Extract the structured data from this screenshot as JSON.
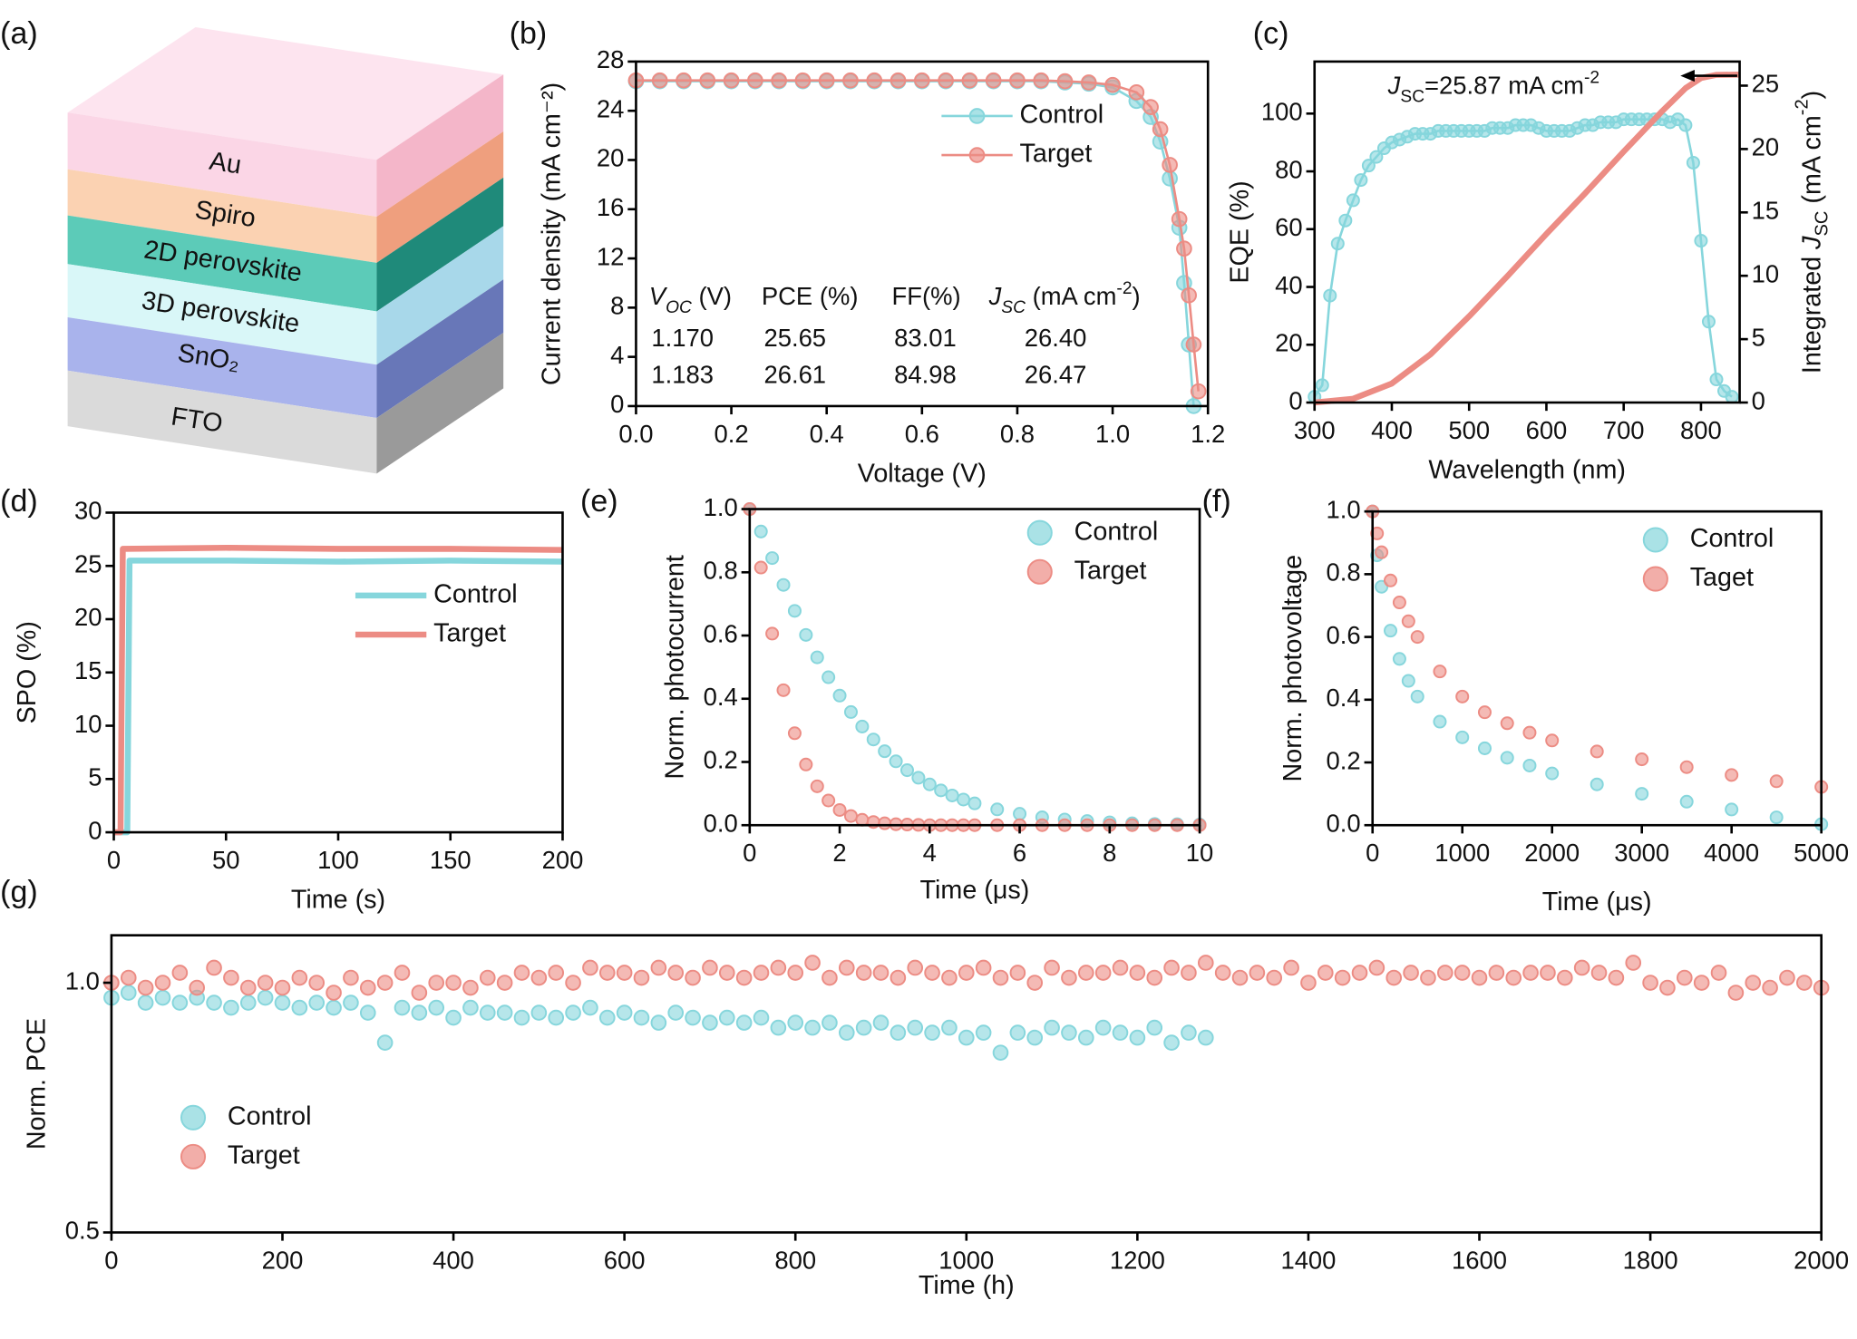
{
  "diagram": {
    "label": "(a)",
    "layers": [
      "Au",
      "Spiro",
      "2D perovskite",
      "3D perovskite",
      "SnO₂",
      "FTO"
    ]
  },
  "chart_data": [
    {
      "type": "line",
      "label": "(b)",
      "xlabel": "Voltage (V)",
      "ylabel": "Current density (mA cm⁻²)",
      "xlim": [
        0,
        1.2
      ],
      "xticks": [
        {
          "value": 0,
          "label": "0.0"
        },
        0.2,
        0.4,
        0.6,
        0.8,
        {
          "value": 1,
          "label": "1.0"
        },
        1.2
      ],
      "ylim": [
        0,
        28
      ],
      "yticks": [
        0,
        4,
        8,
        12,
        16,
        20,
        24,
        28
      ],
      "legend": "upper right",
      "x": [
        0,
        0.05,
        0.1,
        0.15,
        0.2,
        0.25,
        0.3,
        0.35,
        0.4,
        0.45,
        0.5,
        0.55,
        0.6,
        0.65,
        0.7,
        0.75,
        0.8,
        0.85,
        0.9,
        0.95,
        1.0,
        1.05,
        1.08,
        1.1,
        1.12,
        1.14,
        1.15,
        1.16,
        1.17,
        1.18
      ],
      "series": [
        {
          "name": "Control",
          "color": "#86d6dc",
          "style": "line-marker",
          "values": [
            26.4,
            26.4,
            26.4,
            26.4,
            26.4,
            26.4,
            26.4,
            26.4,
            26.4,
            26.4,
            26.4,
            26.4,
            26.4,
            26.4,
            26.4,
            26.4,
            26.4,
            26.4,
            26.3,
            26.2,
            25.9,
            24.8,
            23.5,
            21.5,
            18.5,
            14.5,
            10,
            5,
            0,
            null
          ]
        },
        {
          "name": "Target",
          "color": "#ec8c84",
          "style": "line-marker",
          "values": [
            26.47,
            26.47,
            26.47,
            26.47,
            26.47,
            26.47,
            26.47,
            26.47,
            26.47,
            26.47,
            26.47,
            26.47,
            26.47,
            26.47,
            26.47,
            26.47,
            26.47,
            26.47,
            26.4,
            26.3,
            26.1,
            25.5,
            24.3,
            22.5,
            19.6,
            15.2,
            12.8,
            9,
            5,
            1.2
          ]
        }
      ],
      "table": {
        "headers": [
          [
            {
              "text": "V",
              "style": "italic"
            },
            {
              "text": "OC",
              "style": "italic-sub"
            },
            {
              "text": " (V)"
            }
          ],
          [
            {
              "text": "PCE (%)"
            }
          ],
          [
            {
              "text": "FF(%)"
            }
          ],
          [
            {
              "text": "J",
              "style": "italic"
            },
            {
              "text": "SC",
              "style": "italic-sub"
            },
            {
              "text": " (mA cm"
            },
            {
              "text": "-2",
              "style": "sup"
            },
            {
              "text": ")"
            }
          ]
        ],
        "rows": [
          [
            "1.170",
            "25.65",
            "83.01",
            "26.40"
          ],
          [
            "1.183",
            "26.61",
            "84.98",
            "26.47"
          ]
        ]
      }
    },
    {
      "type": "line",
      "label": "(c)",
      "xlabel": "Wavelength (nm)",
      "ylabel": "EQE (%)",
      "y2label": [
        {
          "text": "Integrated "
        },
        {
          "text": "J",
          "style": "italic"
        },
        {
          "text": "SC",
          "style": "sub"
        },
        {
          "text": " (mA cm"
        },
        {
          "text": "-2",
          "style": "sup"
        },
        {
          "text": ")"
        }
      ],
      "xlim": [
        300,
        850
      ],
      "xticks": [
        300,
        400,
        500,
        600,
        700,
        800
      ],
      "ylim": [
        0,
        118
      ],
      "yticks": [
        0,
        20,
        40,
        60,
        80,
        100
      ],
      "ycolor": "#86d6dc",
      "y2lim": [
        0,
        26.9
      ],
      "y2ticks": [
        0,
        5,
        10,
        15,
        20,
        25
      ],
      "y2color": "#ec8c84",
      "annotation": [
        {
          "text": "J",
          "style": "italic"
        },
        {
          "text": "SC",
          "style": "sub"
        },
        {
          "text": "=25.87 mA cm"
        },
        {
          "text": "-2",
          "style": "sup"
        }
      ],
      "series": [
        {
          "color": "#86d6dc",
          "style": "line-marker",
          "x": [
            300,
            310,
            320,
            330,
            340,
            350,
            360,
            370,
            380,
            390,
            400,
            410,
            420,
            430,
            440,
            450,
            460,
            470,
            480,
            490,
            500,
            510,
            520,
            530,
            540,
            550,
            560,
            570,
            580,
            590,
            600,
            610,
            620,
            630,
            640,
            650,
            660,
            670,
            680,
            690,
            700,
            710,
            720,
            730,
            740,
            750,
            760,
            770,
            780,
            790,
            800,
            810,
            820,
            830,
            840
          ],
          "values": [
            2,
            6,
            37,
            55,
            63,
            70,
            77,
            82,
            85,
            88,
            90,
            91,
            92,
            93,
            93,
            93,
            94,
            94,
            94,
            94,
            94,
            94,
            94,
            95,
            95,
            95,
            96,
            96,
            96,
            95,
            94,
            94,
            94,
            94,
            95,
            96,
            96,
            97,
            97,
            97,
            98,
            98,
            98,
            98,
            98,
            98,
            97,
            98,
            96,
            83,
            56,
            28,
            8,
            4,
            2
          ]
        },
        {
          "color": "#ec8c84",
          "style": "line",
          "axis": "y2",
          "x": [
            300,
            350,
            400,
            450,
            500,
            550,
            600,
            650,
            700,
            750,
            780,
            800,
            820,
            850
          ],
          "values": [
            0,
            0.3,
            1.5,
            3.8,
            6.8,
            10,
            13.3,
            16.5,
            19.8,
            23,
            24.8,
            25.6,
            25.85,
            25.87
          ]
        }
      ]
    },
    {
      "type": "line",
      "label": "(d)",
      "xlabel": "Time (s)",
      "ylabel": "SPO (%)",
      "xlim": [
        0,
        200
      ],
      "xticks": [
        0,
        50,
        100,
        150,
        200
      ],
      "ylim": [
        0,
        30
      ],
      "yticks": [
        0,
        5,
        10,
        15,
        20,
        25,
        30
      ],
      "legend": "center right",
      "series": [
        {
          "name": "Control",
          "color": "#86d6dc",
          "style": "line",
          "x": [
            0,
            6,
            7,
            50,
            100,
            150,
            200
          ],
          "values": [
            0,
            0,
            25.5,
            25.5,
            25.4,
            25.5,
            25.4
          ]
        },
        {
          "name": "Target",
          "color": "#ec8c84",
          "style": "line",
          "x": [
            0,
            3,
            4,
            50,
            100,
            150,
            200
          ],
          "values": [
            0,
            0,
            26.6,
            26.7,
            26.6,
            26.6,
            26.5
          ]
        }
      ]
    },
    {
      "type": "scatter",
      "label": "(e)",
      "xlabel": "Time (μs)",
      "ylabel": "Norm. photocurrent",
      "xlim": [
        0,
        10
      ],
      "xticks": [
        0,
        2,
        4,
        6,
        8,
        10
      ],
      "ylim": [
        0,
        1
      ],
      "yticks": [
        {
          "value": 0,
          "label": "0.0"
        },
        0.2,
        0.4,
        0.6,
        0.8,
        {
          "value": 1,
          "label": "1.0"
        }
      ],
      "legend": "upper right",
      "x": [
        0,
        0.25,
        0.5,
        0.75,
        1,
        1.25,
        1.5,
        1.75,
        2,
        2.25,
        2.5,
        2.75,
        3,
        3.25,
        3.5,
        3.75,
        4,
        4.25,
        4.5,
        4.75,
        5,
        5.5,
        6,
        6.5,
        7,
        7.5,
        8,
        8.5,
        9,
        9.5,
        10
      ],
      "series": [
        {
          "name": "Control",
          "color": "#86d6dc",
          "style": "marker",
          "values": [
            1,
            0.929,
            0.845,
            0.76,
            0.678,
            0.602,
            0.531,
            0.468,
            0.41,
            0.358,
            0.312,
            0.271,
            0.234,
            0.202,
            0.174,
            0.15,
            0.129,
            0.11,
            0.094,
            0.081,
            0.069,
            0.05,
            0.036,
            0.025,
            0.018,
            0.013,
            0.009,
            0.006,
            0.004,
            0.003,
            0.002
          ]
        },
        {
          "name": "Target",
          "color": "#ec8c84",
          "style": "marker",
          "values": [
            1,
            0.815,
            0.606,
            0.427,
            0.291,
            0.192,
            0.123,
            0.078,
            0.048,
            0.029,
            0.017,
            0.01,
            0.006,
            0.003,
            0.002,
            0.001,
            0,
            0,
            0,
            0,
            0,
            0,
            0,
            0,
            0,
            0,
            0,
            0,
            0,
            0,
            0
          ]
        }
      ]
    },
    {
      "type": "scatter",
      "label": "(f)",
      "xlabel": "Time (μs)",
      "ylabel": "Norm. photovoltage",
      "xlim": [
        0,
        5000
      ],
      "xticks": [
        0,
        1000,
        2000,
        3000,
        4000,
        5000
      ],
      "ylim": [
        0,
        1
      ],
      "yticks": [
        {
          "value": 0,
          "label": "0.0"
        },
        0.2,
        0.4,
        0.6,
        0.8,
        {
          "value": 1,
          "label": "1.0"
        }
      ],
      "legend": "upper right",
      "x": [
        0,
        50,
        100,
        200,
        300,
        400,
        500,
        750,
        1000,
        1250,
        1500,
        1750,
        2000,
        2500,
        3000,
        3500,
        4000,
        4500,
        5000
      ],
      "series": [
        {
          "name": "Control",
          "color": "#86d6dc",
          "style": "marker",
          "values": [
            1,
            0.86,
            0.76,
            0.62,
            0.53,
            0.46,
            0.41,
            0.33,
            0.28,
            0.245,
            0.215,
            0.19,
            0.165,
            0.13,
            0.1,
            0.075,
            0.05,
            0.025,
            0.003
          ]
        },
        {
          "name": "Taget",
          "color": "#ec8c84",
          "style": "marker",
          "values": [
            1,
            0.93,
            0.87,
            0.78,
            0.71,
            0.65,
            0.6,
            0.49,
            0.41,
            0.36,
            0.325,
            0.295,
            0.27,
            0.235,
            0.21,
            0.185,
            0.16,
            0.14,
            0.122
          ]
        }
      ]
    },
    {
      "type": "scatter",
      "label": "(g)",
      "xlabel": "Time (h)",
      "ylabel": "Norm. PCE",
      "xlim": [
        0,
        2000
      ],
      "xticks": [
        0,
        200,
        400,
        600,
        800,
        1000,
        1200,
        1400,
        1600,
        1800,
        2000
      ],
      "ylim": [
        0.5,
        1.095
      ],
      "yticks": [
        0.5,
        {
          "value": 1,
          "label": "1.0"
        }
      ],
      "legend": "center left",
      "series": [
        {
          "name": "Control",
          "color": "#86d6dc",
          "style": "marker",
          "x": [
            0,
            20,
            40,
            60,
            80,
            100,
            120,
            140,
            160,
            180,
            200,
            220,
            240,
            260,
            280,
            300,
            320,
            340,
            360,
            380,
            400,
            420,
            440,
            460,
            480,
            500,
            520,
            540,
            560,
            580,
            600,
            620,
            640,
            660,
            680,
            700,
            720,
            740,
            760,
            780,
            800,
            820,
            840,
            860,
            880,
            900,
            920,
            940,
            960,
            980,
            1000,
            1020,
            1040,
            1060,
            1080,
            1100,
            1120,
            1140,
            1160,
            1180,
            1200,
            1220,
            1240,
            1260,
            1280
          ],
          "values": [
            0.97,
            0.98,
            0.96,
            0.97,
            0.96,
            0.97,
            0.96,
            0.95,
            0.96,
            0.97,
            0.96,
            0.95,
            0.96,
            0.95,
            0.96,
            0.94,
            0.88,
            0.95,
            0.94,
            0.95,
            0.93,
            0.95,
            0.94,
            0.94,
            0.93,
            0.94,
            0.93,
            0.94,
            0.95,
            0.93,
            0.94,
            0.93,
            0.92,
            0.94,
            0.93,
            0.92,
            0.93,
            0.92,
            0.93,
            0.91,
            0.92,
            0.91,
            0.92,
            0.9,
            0.91,
            0.92,
            0.9,
            0.91,
            0.9,
            0.91,
            0.89,
            0.9,
            0.86,
            0.9,
            0.89,
            0.91,
            0.9,
            0.89,
            0.91,
            0.9,
            0.89,
            0.91,
            0.88,
            0.9,
            0.89
          ]
        },
        {
          "name": "Target",
          "color": "#ec8c84",
          "style": "marker",
          "x": [
            0,
            20,
            40,
            60,
            80,
            100,
            120,
            140,
            160,
            180,
            200,
            220,
            240,
            260,
            280,
            300,
            320,
            340,
            360,
            380,
            400,
            420,
            440,
            460,
            480,
            500,
            520,
            540,
            560,
            580,
            600,
            620,
            640,
            660,
            680,
            700,
            720,
            740,
            760,
            780,
            800,
            820,
            840,
            860,
            880,
            900,
            920,
            940,
            960,
            980,
            1000,
            1020,
            1040,
            1060,
            1080,
            1100,
            1120,
            1140,
            1160,
            1180,
            1200,
            1220,
            1240,
            1260,
            1280,
            1300,
            1320,
            1340,
            1360,
            1380,
            1400,
            1420,
            1440,
            1460,
            1480,
            1500,
            1520,
            1540,
            1560,
            1580,
            1600,
            1620,
            1640,
            1660,
            1680,
            1700,
            1720,
            1740,
            1760,
            1780,
            1800,
            1820,
            1840,
            1860,
            1880,
            1900,
            1920,
            1940,
            1960,
            1980,
            2000
          ],
          "values": [
            1.0,
            1.01,
            0.99,
            1.0,
            1.02,
            0.99,
            1.03,
            1.01,
            0.99,
            1.0,
            0.99,
            1.01,
            1.0,
            0.98,
            1.01,
            0.99,
            1.0,
            1.02,
            0.98,
            1.0,
            1.0,
            0.99,
            1.01,
            1.0,
            1.02,
            1.01,
            1.02,
            1.0,
            1.03,
            1.02,
            1.02,
            1.01,
            1.03,
            1.02,
            1.01,
            1.03,
            1.02,
            1.01,
            1.02,
            1.03,
            1.02,
            1.04,
            1.01,
            1.03,
            1.02,
            1.02,
            1.01,
            1.03,
            1.02,
            1.01,
            1.02,
            1.03,
            1.01,
            1.02,
            1.0,
            1.03,
            1.01,
            1.02,
            1.02,
            1.03,
            1.02,
            1.01,
            1.03,
            1.02,
            1.04,
            1.02,
            1.01,
            1.02,
            1.01,
            1.03,
            1.0,
            1.02,
            1.01,
            1.02,
            1.03,
            1.01,
            1.02,
            1.01,
            1.02,
            1.02,
            1.01,
            1.02,
            1.01,
            1.02,
            1.02,
            1.01,
            1.03,
            1.02,
            1.01,
            1.04,
            1.0,
            0.99,
            1.01,
            1.0,
            1.02,
            0.98,
            1.0,
            0.99,
            1.01,
            1.0,
            0.99
          ]
        }
      ]
    }
  ]
}
